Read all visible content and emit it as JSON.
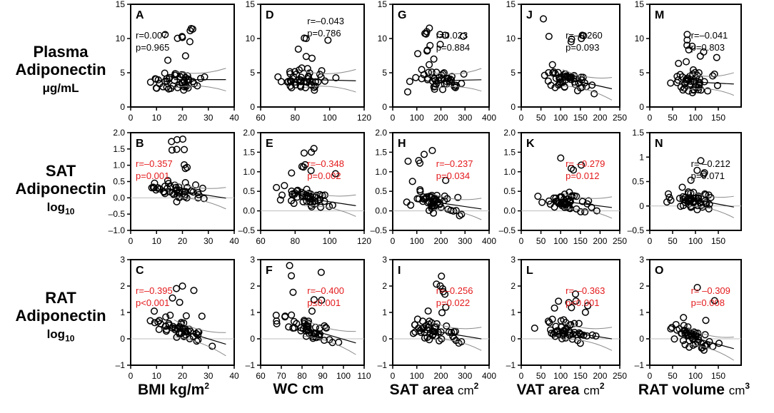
{
  "colors": {
    "sig": "#e41a1c",
    "ns": "#000000",
    "frame": "#000000",
    "ref": "#bdbdbd",
    "band": "#8a8a8a"
  },
  "rows": [
    {
      "id": "plasma",
      "line1": "Plasma",
      "line2": "Adiponectin",
      "unit": "μg/mL"
    },
    {
      "id": "sat",
      "line1": "SAT",
      "line2": "Adiponectin",
      "unit": "log",
      "unit_sub": "10"
    },
    {
      "id": "rat",
      "line1": "RAT",
      "line2": "Adiponectin",
      "unit": "log",
      "unit_sub": "10"
    }
  ],
  "columns": [
    {
      "id": "bmi",
      "label": "BMI kg/m",
      "sup": "2"
    },
    {
      "id": "wc",
      "label": "WC cm"
    },
    {
      "id": "sat",
      "label": "SAT area ",
      "unit": "cm",
      "sup": "2"
    },
    {
      "id": "vat",
      "label": "VAT area ",
      "unit": "cm",
      "sup": "2"
    },
    {
      "id": "rat",
      "label": "RAT volume ",
      "unit": "cm",
      "sup": "3"
    }
  ],
  "chart_data": [
    {
      "type": "scatter",
      "panel": "A",
      "r_text": "r=0.007",
      "p_text": "p=0.965",
      "significant": false,
      "xlim": [
        0,
        40
      ],
      "xticks": [
        0,
        10,
        20,
        30,
        40
      ],
      "ylim": [
        0,
        15
      ],
      "yticks": [
        0,
        5,
        10,
        15
      ],
      "yticklabels": [
        "0",
        "5",
        "10",
        "15"
      ],
      "fit": [
        4.0,
        4.0
      ]
    },
    {
      "type": "scatter",
      "panel": "D",
      "r_text": "r=–0.043",
      "p_text": "p=0.786",
      "significant": false,
      "xlim": [
        60,
        120
      ],
      "xticks": [
        60,
        80,
        100,
        120
      ],
      "ylim": [
        0,
        15
      ],
      "yticks": [
        0,
        5,
        10,
        15
      ],
      "yticklabels": [
        "0",
        "5",
        "10",
        "15"
      ],
      "fit": [
        4.2,
        3.8
      ]
    },
    {
      "type": "scatter",
      "panel": "G",
      "r_text": "r=0.023",
      "p_text": "p=0.884",
      "significant": false,
      "xlim": [
        0,
        400
      ],
      "xticks": [
        0,
        100,
        200,
        300,
        400
      ],
      "ylim": [
        0,
        15
      ],
      "yticks": [
        0,
        5,
        10,
        15
      ],
      "yticklabels": [
        "0",
        "5",
        "10",
        "15"
      ],
      "fit": [
        3.7,
        4.0
      ]
    },
    {
      "type": "scatter",
      "panel": "J",
      "r_text": "r=–0.260",
      "p_text": "p=0.093",
      "significant": false,
      "xlim": [
        0,
        250
      ],
      "xticks": [
        0,
        50,
        100,
        150,
        200,
        250
      ],
      "ylim": [
        0,
        15
      ],
      "yticks": [
        0,
        5,
        10,
        15
      ],
      "yticklabels": [
        "0",
        "5",
        "10",
        "15"
      ],
      "fit": [
        5.6,
        2.4
      ]
    },
    {
      "type": "scatter",
      "panel": "M",
      "r_text": "r=–0.041",
      "p_text": "p=0.803",
      "significant": false,
      "xlim": [
        0,
        200
      ],
      "xticks": [
        0,
        50,
        100,
        150
      ],
      "ylim": [
        0,
        15
      ],
      "yticks": [
        0,
        5,
        10,
        15
      ],
      "yticklabels": [
        "0",
        "5",
        "10",
        "15"
      ],
      "fit": [
        4.0,
        3.3
      ]
    },
    {
      "type": "scatter",
      "panel": "B",
      "r_text": "r=–0.357",
      "p_text": "p=0.001",
      "significant": true,
      "xlim": [
        0,
        40
      ],
      "xticks": [
        0,
        10,
        20,
        30,
        40
      ],
      "ylim": [
        -1,
        2
      ],
      "yticks": [
        -1,
        -0.5,
        0,
        0.5,
        1,
        1.5,
        2
      ],
      "yticklabels": [
        "–1.0",
        "–0.5",
        "0.0",
        "0.5",
        "1.0",
        "1.5",
        "2.0"
      ],
      "fit": [
        0.45,
        -0.05
      ]
    },
    {
      "type": "scatter",
      "panel": "E",
      "r_text": "r=–0.348",
      "p_text": "p=0.002",
      "significant": true,
      "xlim": [
        60,
        120
      ],
      "xticks": [
        60,
        80,
        100,
        120
      ],
      "ylim": [
        -0.5,
        2
      ],
      "yticks": [
        -0.5,
        0,
        0.5,
        1,
        1.5,
        2
      ],
      "yticklabels": [
        "–0.5",
        "0.0",
        "0.5",
        "1.0",
        "1.5",
        "2.0"
      ],
      "fit": [
        0.5,
        0.1
      ]
    },
    {
      "type": "scatter",
      "panel": "H",
      "r_text": "r=–0.237",
      "p_text": "p=0.034",
      "significant": true,
      "xlim": [
        0,
        400
      ],
      "xticks": [
        0,
        100,
        200,
        300,
        400
      ],
      "ylim": [
        -0.5,
        2
      ],
      "yticks": [
        -0.5,
        0,
        0.5,
        1,
        1.5,
        2
      ],
      "yticklabels": [
        "–0.5",
        "0.0",
        "0.5",
        "1.0",
        "1.5",
        "2.0"
      ],
      "fit": [
        0.38,
        0.02
      ]
    },
    {
      "type": "scatter",
      "panel": "K",
      "r_text": "r= –0.279",
      "p_text": "p=0.012",
      "significant": true,
      "xlim": [
        0,
        250
      ],
      "xticks": [
        0,
        50,
        100,
        150,
        200,
        250
      ],
      "ylim": [
        -0.5,
        2
      ],
      "yticks": [
        -0.5,
        0,
        0.5,
        1,
        1.5,
        2
      ],
      "yticklabels": [
        "–0.5",
        "0.0",
        "0.5",
        "1.0",
        "1.5",
        "2.0"
      ],
      "fit": [
        0.38,
        0.06
      ]
    },
    {
      "type": "scatter",
      "panel": "N",
      "r_text": "r= –0.212",
      "p_text": "p=0.071",
      "significant": false,
      "xlim": [
        0,
        200
      ],
      "xticks": [
        0,
        50,
        100,
        150
      ],
      "ylim": [
        -0.5,
        1.5
      ],
      "yticks": [
        -0.5,
        0,
        0.5,
        1,
        1.5
      ],
      "yticklabels": [
        "–0.5",
        "0",
        "0.5",
        "1",
        "1.5"
      ],
      "fit": [
        0.3,
        -0.05
      ]
    },
    {
      "type": "scatter",
      "panel": "C",
      "r_text": "r=–0.395",
      "p_text": "p<0.001",
      "significant": true,
      "xlim": [
        0,
        40
      ],
      "xticks": [
        0,
        10,
        20,
        30,
        40
      ],
      "ylim": [
        -1,
        3
      ],
      "yticks": [
        -1,
        0,
        1,
        2,
        3
      ],
      "yticklabels": [
        "–1",
        "0",
        "1",
        "2",
        "3"
      ],
      "fit": [
        0.9,
        -0.3
      ]
    },
    {
      "type": "scatter",
      "panel": "F",
      "r_text": "r=–0.400",
      "p_text": "p≤0.001",
      "significant": true,
      "xlim": [
        60,
        110
      ],
      "xticks": [
        60,
        70,
        80,
        90,
        100,
        110
      ],
      "ylim": [
        -1,
        3
      ],
      "yticks": [
        -1,
        0,
        1,
        2,
        3
      ],
      "yticklabels": [
        "–1",
        "0",
        "1",
        "2",
        "3"
      ],
      "fit": [
        0.9,
        -0.25
      ]
    },
    {
      "type": "scatter",
      "panel": "I",
      "r_text": "r=–0.256",
      "p_text": "p=0.022",
      "significant": true,
      "xlim": [
        0,
        400
      ],
      "xticks": [
        0,
        100,
        200,
        300,
        400
      ],
      "ylim": [
        -1,
        3
      ],
      "yticks": [
        -1,
        0,
        1,
        2,
        3
      ],
      "yticklabels": [
        "–1",
        "0",
        "1",
        "2",
        "3"
      ],
      "fit": [
        0.55,
        -0.05
      ]
    },
    {
      "type": "scatter",
      "panel": "L",
      "r_text": "r= –0.363",
      "p_text": "p<0.001",
      "significant": true,
      "xlim": [
        0,
        250
      ],
      "xticks": [
        0,
        50,
        100,
        150,
        200,
        250
      ],
      "ylim": [
        -1,
        3
      ],
      "yticks": [
        -1,
        0,
        1,
        2,
        3
      ],
      "yticklabels": [
        "–1",
        "0",
        "1",
        "2",
        "3"
      ],
      "fit": [
        0.55,
        -0.05
      ]
    },
    {
      "type": "scatter",
      "panel": "O",
      "r_text": "r= –0.309",
      "p_text": "p=0.008",
      "significant": true,
      "xlim": [
        0,
        200
      ],
      "xticks": [
        0,
        50,
        100,
        150
      ],
      "ylim": [
        -1,
        3
      ],
      "yticks": [
        -1,
        0,
        1,
        2,
        3
      ],
      "yticklabels": [
        "–1",
        "0",
        "1",
        "2",
        "3"
      ],
      "fit": [
        0.5,
        -0.45
      ]
    }
  ]
}
